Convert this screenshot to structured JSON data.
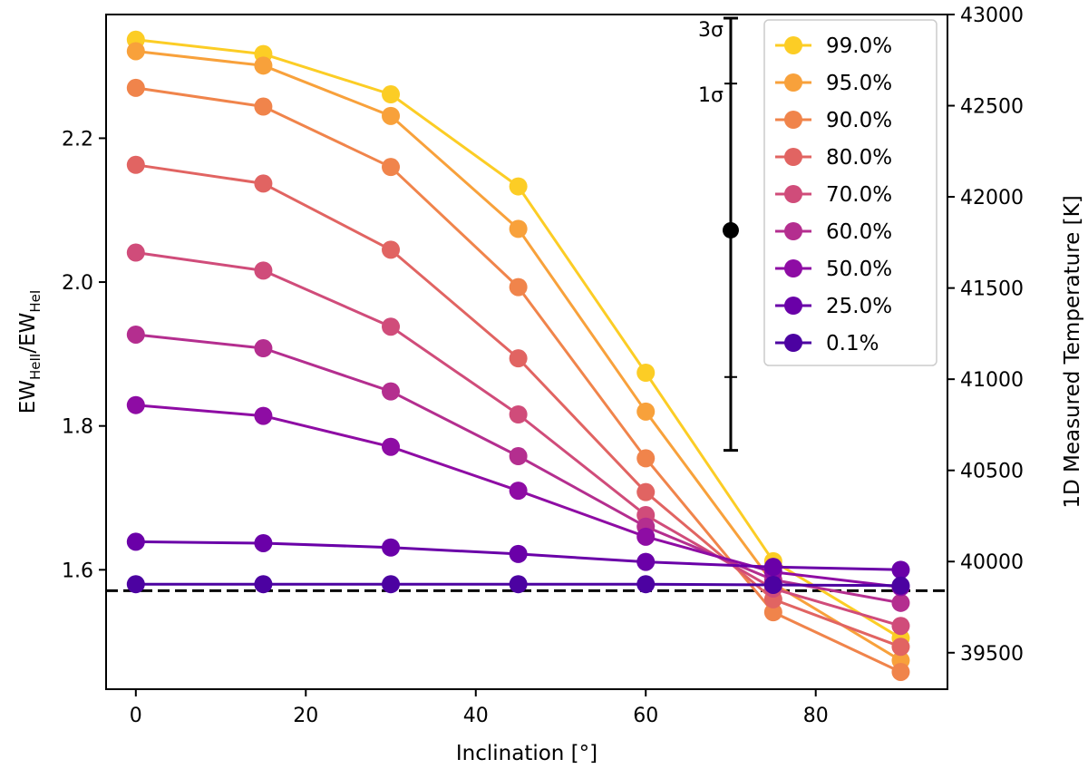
{
  "chart_data": {
    "type": "line",
    "x": [
      0,
      15,
      30,
      45,
      60,
      75,
      90
    ],
    "xlabel": "Inclination [°]",
    "ylabel": "EW_HeII/EW_HeI",
    "ylabel_parts": {
      "base1": "EW",
      "sub1": "HeII",
      "sep": "/",
      "base2": "EW",
      "sub2": "HeI"
    },
    "y2label": "1D Measured Temperature [K]",
    "xlim": [
      -3.5,
      95.5
    ],
    "ylim": [
      1.434,
      2.372
    ],
    "y2lim": [
      39300,
      43000
    ],
    "xticks": [
      0,
      20,
      40,
      60,
      80
    ],
    "xtick_labels": [
      "0",
      "20",
      "40",
      "60",
      "80"
    ],
    "yticks": [
      1.6,
      1.8,
      2.0,
      2.2
    ],
    "ytick_labels": [
      "1.6",
      "1.8",
      "2.0",
      "2.2"
    ],
    "y2ticks": [
      39500,
      40000,
      40500,
      41000,
      41500,
      42000,
      42500,
      43000
    ],
    "y2tick_labels": [
      "39500",
      "40000",
      "40500",
      "41000",
      "41500",
      "42000",
      "42500",
      "43000"
    ],
    "reference_line": {
      "y": 1.571,
      "style": "dashed",
      "color": "#000000"
    },
    "measurement": {
      "x": 70,
      "y": 2.072,
      "sigma1": [
        1.868,
        2.276
      ],
      "sigma3": [
        1.766,
        2.367
      ],
      "label_1sigma": "1σ",
      "label_3sigma": "3σ"
    },
    "legend_position": "upper-right",
    "series": [
      {
        "name": "99.0%",
        "color": "#fccd25",
        "values": [
          2.337,
          2.317,
          2.261,
          2.133,
          1.874,
          1.612,
          1.505
        ]
      },
      {
        "name": "95.0%",
        "color": "#f8a13b",
        "values": [
          2.321,
          2.301,
          2.231,
          2.074,
          1.82,
          1.581,
          1.474
        ]
      },
      {
        "name": "90.0%",
        "color": "#f0844b",
        "values": [
          2.27,
          2.244,
          2.16,
          1.993,
          1.755,
          1.541,
          1.458
        ]
      },
      {
        "name": "80.0%",
        "color": "#e16462",
        "values": [
          2.163,
          2.137,
          2.045,
          1.894,
          1.708,
          1.559,
          1.493
        ]
      },
      {
        "name": "70.0%",
        "color": "#d04c7a",
        "values": [
          2.041,
          2.016,
          1.938,
          1.816,
          1.676,
          1.574,
          1.522
        ]
      },
      {
        "name": "60.0%",
        "color": "#b42e8f",
        "values": [
          1.927,
          1.908,
          1.848,
          1.758,
          1.66,
          1.586,
          1.554
        ]
      },
      {
        "name": "50.0%",
        "color": "#8e0ca4",
        "values": [
          1.829,
          1.814,
          1.771,
          1.71,
          1.646,
          1.597,
          1.576
        ]
      },
      {
        "name": "25.0%",
        "color": "#6a00a8",
        "values": [
          1.639,
          1.637,
          1.631,
          1.622,
          1.611,
          1.604,
          1.6
        ]
      },
      {
        "name": "0.1%",
        "color": "#4c02a1",
        "values": [
          1.58,
          1.58,
          1.58,
          1.58,
          1.58,
          1.579,
          1.578
        ]
      }
    ]
  }
}
